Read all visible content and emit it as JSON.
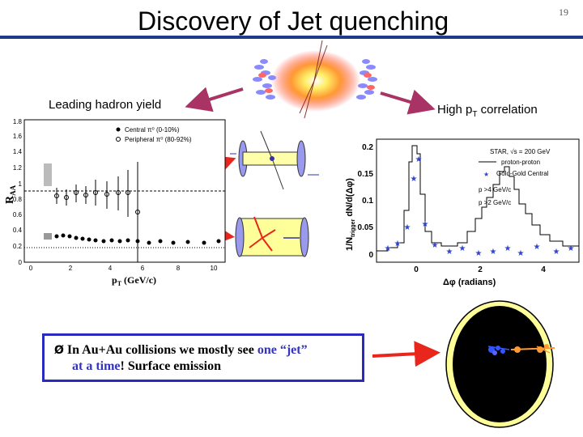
{
  "header": {
    "title": "Discovery of Jet quenching",
    "page": "19"
  },
  "labels": {
    "leading": "Leading hadron yield",
    "high_pre": "High p",
    "high_sub": "T",
    "high_post": " correlation"
  },
  "raa": {
    "ylabel": "R",
    "ylabel_sub": "AA",
    "xlabel_p": "p",
    "xlabel_sub": "T",
    "xlabel_rest": " (GeV/c)",
    "yticks": [
      "0",
      "0.2",
      "0.4",
      "0.6",
      "0.8",
      "1",
      "1.2",
      "1.4",
      "1.6",
      "1.8"
    ],
    "xticks": [
      "0",
      "2",
      "4",
      "6",
      "8",
      "10"
    ],
    "legend_central": "Central π⁰ (0-10%)",
    "legend_peripheral": "Peripheral π⁰ (80-92%)"
  },
  "corr": {
    "ylabel": "1/N",
    "ylabel_sub": "trigger",
    "ylabel_rest": " dN/d(Δφ)",
    "xlabel": "Δφ (radians)",
    "yticks": [
      "0",
      "0.05",
      "0.1",
      "0.15",
      "0.2"
    ],
    "xticks": [
      "0",
      "2",
      "4"
    ],
    "legend_title": "STAR, √s",
    "legend_title_rest": " = 200 GeV",
    "legend_pp": "proton-proton",
    "legend_auau": "Gold-Gold Central",
    "cut_trig": "p",
    "cut_trig_rest": " >4 GeV/c",
    "cut_assoc": "p",
    "cut_assoc_rest": " >2 GeV/c"
  },
  "bullet": {
    "arrow": "Ø",
    "line1_pre": " In Au+Au collisions we mostly see ",
    "line1_blue": "one “jet”",
    "line2_blue": "at a time",
    "line2_post": "! Surface emission"
  },
  "colors": {
    "red": "#e8261c",
    "navy": "#1f3a8a",
    "blue_text": "#3333bb",
    "yellow": "#ffff99"
  }
}
